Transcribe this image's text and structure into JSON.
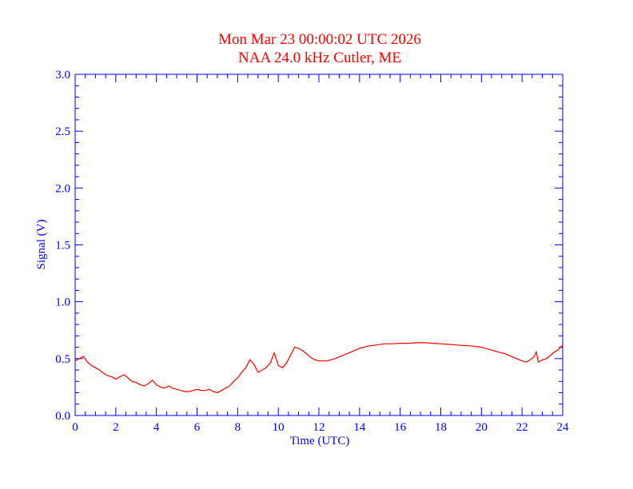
{
  "colors": {
    "title": "#ff0000",
    "axes": "#0000ff",
    "series": "#ff0000",
    "background": "#ffffff"
  },
  "chart_data": {
    "type": "line",
    "title": "Mon Mar 23 00:00:02 UTC 2026",
    "subtitle": "NAA 24.0 kHz Cutler, ME",
    "xlabel": "Time (UTC)",
    "ylabel": "Signal (V)",
    "xlim": [
      0,
      24
    ],
    "ylim": [
      0.0,
      3.0
    ],
    "xticks": [
      "0",
      "2",
      "4",
      "6",
      "8",
      "10",
      "12",
      "14",
      "16",
      "18",
      "20",
      "22",
      "24"
    ],
    "yticks": [
      "0.0",
      "0.5",
      "1.0",
      "1.5",
      "2.0",
      "2.5",
      "3.0"
    ],
    "grid": false,
    "series": [
      {
        "x": [
          0.0,
          0.2,
          0.4,
          0.6,
          0.8,
          1.0,
          1.2,
          1.4,
          1.6,
          1.8,
          2.0,
          2.2,
          2.4,
          2.6,
          2.8,
          3.0,
          3.2,
          3.4,
          3.6,
          3.8,
          4.0,
          4.2,
          4.4,
          4.6,
          4.8,
          5.0,
          5.2,
          5.4,
          5.6,
          5.8,
          6.0,
          6.2,
          6.4,
          6.6,
          6.8,
          7.0,
          7.2,
          7.4,
          7.6,
          7.8,
          8.0,
          8.2,
          8.4,
          8.6,
          8.8,
          9.0,
          9.2,
          9.4,
          9.6,
          9.8,
          10.0,
          10.2,
          10.4,
          10.6,
          10.8,
          11.0,
          11.2,
          11.4,
          11.6,
          11.8,
          12.0,
          12.4,
          12.8,
          13.2,
          13.6,
          14.0,
          14.4,
          14.8,
          15.2,
          15.6,
          16.0,
          16.4,
          16.8,
          17.2,
          17.6,
          18.0,
          18.4,
          18.8,
          19.2,
          19.6,
          20.0,
          20.4,
          20.8,
          21.2,
          21.6,
          22.0,
          22.2,
          22.4,
          22.6,
          22.7,
          22.8,
          23.0,
          23.2,
          23.4,
          23.6,
          23.8,
          24.0
        ],
        "y": [
          0.48,
          0.5,
          0.52,
          0.47,
          0.44,
          0.42,
          0.4,
          0.37,
          0.35,
          0.34,
          0.32,
          0.34,
          0.36,
          0.33,
          0.3,
          0.29,
          0.27,
          0.26,
          0.28,
          0.31,
          0.27,
          0.25,
          0.24,
          0.26,
          0.24,
          0.23,
          0.22,
          0.21,
          0.21,
          0.22,
          0.23,
          0.22,
          0.22,
          0.23,
          0.21,
          0.2,
          0.22,
          0.24,
          0.26,
          0.3,
          0.33,
          0.38,
          0.42,
          0.49,
          0.45,
          0.38,
          0.4,
          0.42,
          0.46,
          0.55,
          0.44,
          0.42,
          0.46,
          0.53,
          0.6,
          0.59,
          0.57,
          0.54,
          0.51,
          0.49,
          0.48,
          0.48,
          0.5,
          0.53,
          0.56,
          0.59,
          0.61,
          0.62,
          0.63,
          0.63,
          0.635,
          0.635,
          0.64,
          0.64,
          0.635,
          0.63,
          0.625,
          0.62,
          0.615,
          0.61,
          0.6,
          0.58,
          0.56,
          0.54,
          0.51,
          0.48,
          0.47,
          0.49,
          0.52,
          0.56,
          0.47,
          0.49,
          0.5,
          0.53,
          0.56,
          0.58,
          0.62
        ]
      }
    ]
  }
}
